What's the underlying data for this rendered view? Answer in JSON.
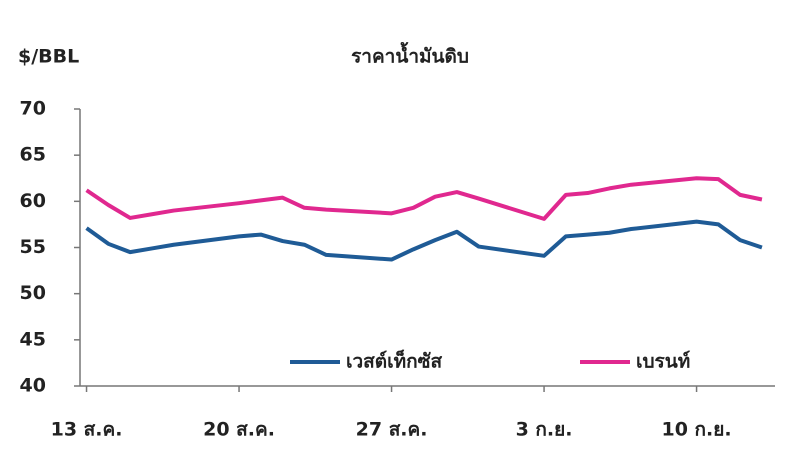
{
  "chart_data": {
    "type": "line",
    "title": "ราคาน้ำมันดิบ",
    "y_label": "$/BBL",
    "x": [
      0,
      1,
      2,
      3,
      4,
      7,
      8,
      9,
      10,
      11,
      14,
      15,
      16,
      17,
      18,
      21,
      22,
      23,
      24,
      25,
      28,
      29,
      30,
      31
    ],
    "xlim": [
      -0.3,
      31.6
    ],
    "xticks": [
      {
        "value": 0,
        "label": "13 ส.ค."
      },
      {
        "value": 7,
        "label": "20 ส.ค."
      },
      {
        "value": 14,
        "label": "27 ส.ค."
      },
      {
        "value": 21,
        "label": "3 ก.ย."
      },
      {
        "value": 28,
        "label": "10 ก.ย."
      }
    ],
    "ylim": [
      40,
      70
    ],
    "yticks": [
      40,
      45,
      50,
      55,
      60,
      65,
      70
    ],
    "grid": false,
    "series": [
      {
        "name": "เวสต์เท็กซัส",
        "color": "#1f5b96",
        "values": [
          57.1,
          55.4,
          54.5,
          54.9,
          55.3,
          56.2,
          56.4,
          55.7,
          55.3,
          54.2,
          53.7,
          54.8,
          55.8,
          56.7,
          55.1,
          54.1,
          56.2,
          56.4,
          56.6,
          57.0,
          57.8,
          57.5,
          55.8,
          55.0
        ]
      },
      {
        "name": "เบรนท์",
        "color": "#e0288f",
        "values": [
          61.2,
          59.6,
          58.2,
          58.6,
          59.0,
          59.8,
          60.1,
          60.4,
          59.3,
          59.1,
          58.7,
          59.3,
          60.5,
          61.0,
          60.3,
          58.1,
          60.7,
          60.9,
          61.4,
          61.8,
          62.5,
          62.4,
          60.7,
          60.2
        ]
      }
    ]
  }
}
